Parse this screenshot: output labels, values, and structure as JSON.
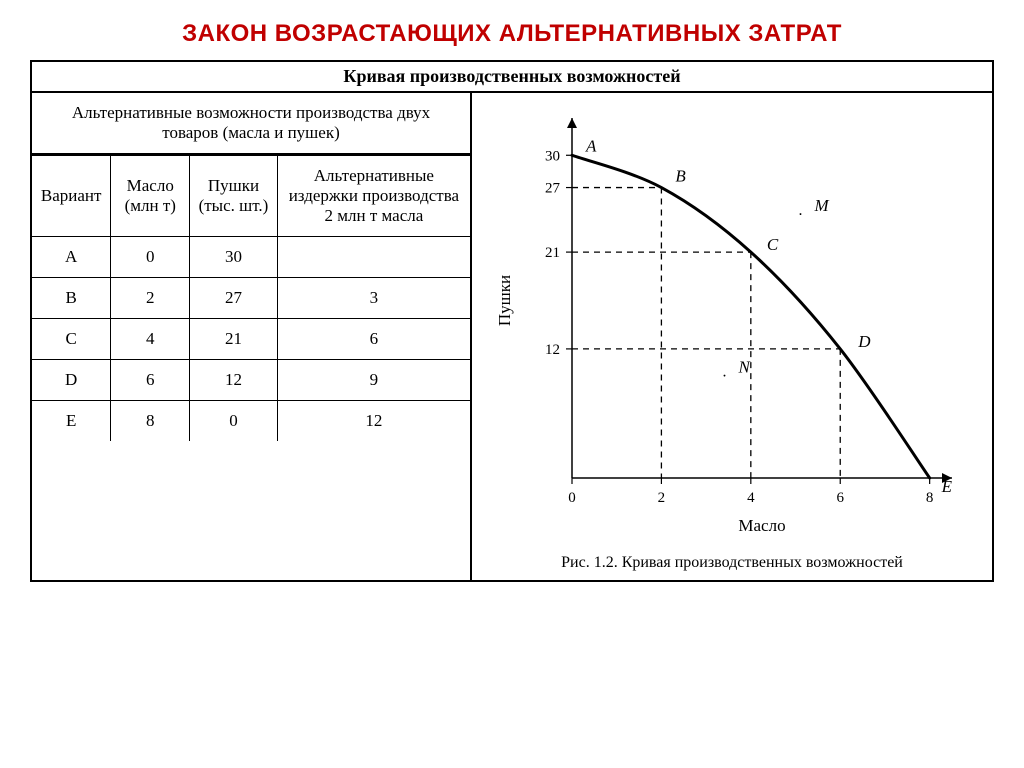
{
  "title": "ЗАКОН ВОЗРАСТАЮЩИХ АЛЬТЕРНАТИВНЫХ ЗАТРАТ",
  "title_color": "#c00000",
  "section_title": "Кривая производственных возможностей",
  "table": {
    "caption": "Альтернативные возможности производства двух товаров (масла и пушек)",
    "columns": [
      "Вариант",
      "Масло (млн т)",
      "Пушки (тыс. шт.)",
      "Альтернативные издержки производства 2 млн т масла"
    ],
    "col_widths_pct": [
      18,
      18,
      20,
      44
    ],
    "rows": [
      [
        "A",
        "0",
        "30",
        ""
      ],
      [
        "B",
        "2",
        "27",
        "3"
      ],
      [
        "C",
        "4",
        "21",
        "6"
      ],
      [
        "D",
        "6",
        "12",
        "9"
      ],
      [
        "E",
        "8",
        "0",
        "12"
      ]
    ]
  },
  "chart": {
    "type": "line",
    "xlabel": "Масло",
    "ylabel": "Пушки",
    "xlim": [
      0,
      8.5
    ],
    "ylim": [
      0,
      33
    ],
    "x_ticks": [
      0,
      2,
      4,
      6,
      8
    ],
    "y_ticks": [
      12,
      21,
      27,
      30
    ],
    "curve_points": [
      {
        "x": 0,
        "y": 30,
        "label": "A"
      },
      {
        "x": 2,
        "y": 27,
        "label": "B"
      },
      {
        "x": 4,
        "y": 21,
        "label": "C"
      },
      {
        "x": 6,
        "y": 12,
        "label": "D"
      },
      {
        "x": 8,
        "y": 0,
        "label": "E"
      }
    ],
    "extra_points": [
      {
        "x": 5.2,
        "y": 25,
        "label": "M"
      },
      {
        "x": 3.5,
        "y": 10,
        "label": "N"
      }
    ],
    "line_color": "#000000",
    "line_width": 3,
    "dash_color": "#000000",
    "background_color": "#ffffff",
    "label_fontsize": 17,
    "tick_fontsize": 15,
    "caption": "Рис. 1.2. Кривая производственных возможностей"
  }
}
